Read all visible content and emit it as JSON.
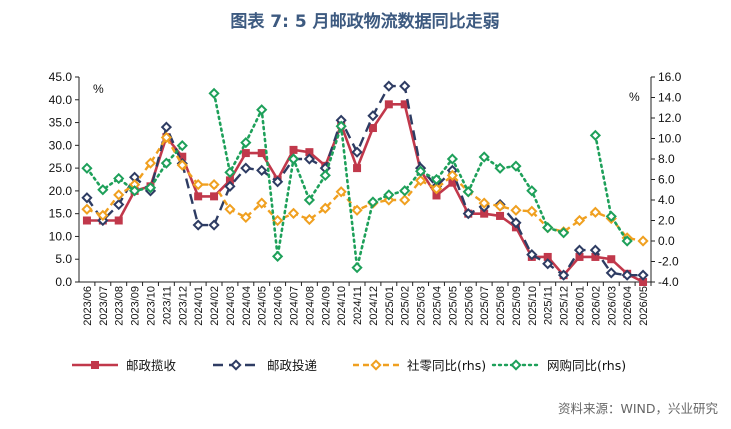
{
  "page": {
    "title": "图表 7: 5 月邮政物流数据同比走弱",
    "source": "资料来源：WIND，兴业研究"
  },
  "chart_data": {
    "type": "line",
    "title": "图表 7: 5 月邮政物流数据同比走弱",
    "left_unit": "%",
    "right_unit": "%",
    "ylim_left": [
      0,
      45
    ],
    "yticks_left": [
      "0.0",
      "5.0",
      "10.0",
      "15.0",
      "20.0",
      "25.0",
      "30.0",
      "35.0",
      "40.0",
      "45.0"
    ],
    "ylim_right": [
      -4,
      16
    ],
    "yticks_right": [
      "-4.0",
      "-2.0",
      "0.0",
      "2.0",
      "4.0",
      "6.0",
      "8.0",
      "10.0",
      "12.0",
      "14.0",
      "16.0"
    ],
    "grid": false,
    "legend_position": "bottom",
    "categories": [
      "2023/06",
      "2023/07",
      "2023/08",
      "2023/09",
      "2023/10",
      "2023/11",
      "2023/12",
      "2024/01",
      "2024/02",
      "2024/03",
      "2024/04",
      "2024/05",
      "2024/06",
      "2024/07",
      "2024/08",
      "2024/09",
      "2024/10",
      "2024/11",
      "2024/12",
      "2025/01",
      "2025/02",
      "2025/03",
      "2025/04",
      "2025/05",
      "2025/06",
      "2025/07",
      "2025/08",
      "2025/09",
      "2025/10",
      "2025/11",
      "2025/12",
      "2026/01",
      "2026/02",
      "2026/03",
      "2026/04",
      "2026/05"
    ],
    "series": [
      {
        "name": "邮政揽收",
        "axis": "left",
        "color": "#c1384b",
        "dash": "solid",
        "marker": "square",
        "values": [
          13.5,
          13.5,
          13.5,
          20.0,
          21.0,
          31.8,
          27.5,
          18.8,
          18.8,
          22.3,
          28.3,
          28.3,
          22.5,
          29.0,
          28.5,
          25.5,
          34.5,
          25.0,
          33.8,
          39.0,
          39.0,
          24.5,
          19.0,
          21.8,
          15.0,
          15.0,
          14.5,
          12.0,
          5.5,
          5.5,
          1.5,
          5.5,
          5.5,
          5.0,
          1.8,
          0.0
        ]
      },
      {
        "name": "邮政投递",
        "axis": "left",
        "color": "#2e3c63",
        "dash": "10,6",
        "marker": "diamond-open",
        "values": [
          18.5,
          13.5,
          17.0,
          23.0,
          20.0,
          34.0,
          26.0,
          12.5,
          12.5,
          21.0,
          25.0,
          24.5,
          22.0,
          27.0,
          27.0,
          25.0,
          35.5,
          28.5,
          36.5,
          43.0,
          43.0,
          25.0,
          21.0,
          24.5,
          15.0,
          16.5,
          17.0,
          13.0,
          6.0,
          4.0,
          1.5,
          7.0,
          7.0,
          2.0,
          1.5,
          1.5
        ]
      },
      {
        "name": "社零同比(rhs)",
        "axis": "right",
        "color": "#f0a020",
        "dash": "6,4",
        "marker": "diamond-open",
        "values": [
          3.1,
          2.5,
          4.5,
          5.5,
          7.6,
          10.1,
          7.4,
          5.5,
          5.5,
          3.1,
          2.3,
          3.7,
          2.0,
          2.7,
          2.1,
          3.2,
          4.8,
          3.0,
          3.7,
          4.0,
          4.0,
          5.9,
          5.1,
          6.4,
          4.8,
          3.7,
          3.4,
          3.0,
          2.9,
          1.3,
          0.9,
          2.0,
          2.8,
          2.2,
          0.3,
          0.0
        ]
      },
      {
        "name": "网购同比(rhs)",
        "axis": "right",
        "color": "#1ea05a",
        "dash": "2,4",
        "marker": "diamond-open",
        "values": [
          7.1,
          5.0,
          6.1,
          4.9,
          5.2,
          7.6,
          9.3,
          null,
          14.4,
          6.7,
          9.6,
          12.8,
          -1.5,
          8.0,
          4.0,
          6.4,
          11.2,
          -2.6,
          3.8,
          4.5,
          4.9,
          6.8,
          6.0,
          8.0,
          4.8,
          8.2,
          7.1,
          7.3,
          4.9,
          1.3,
          0.8,
          null,
          10.3,
          2.4,
          0.0,
          null
        ]
      }
    ]
  }
}
